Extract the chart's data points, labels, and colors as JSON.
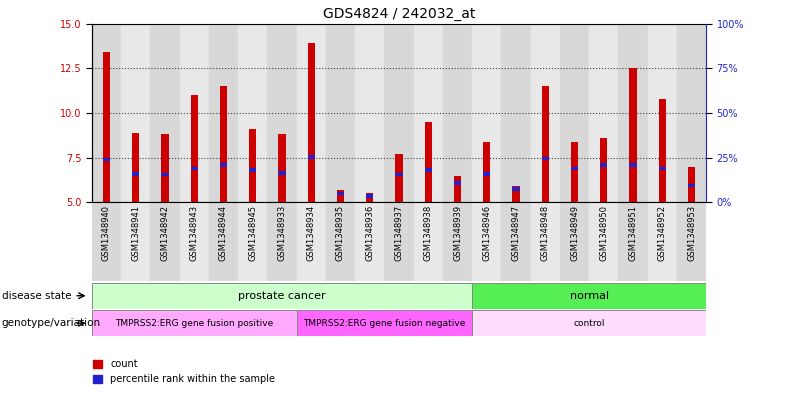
{
  "title": "GDS4824 / 242032_at",
  "samples": [
    "GSM1348940",
    "GSM1348941",
    "GSM1348942",
    "GSM1348943",
    "GSM1348944",
    "GSM1348945",
    "GSM1348933",
    "GSM1348934",
    "GSM1348935",
    "GSM1348936",
    "GSM1348937",
    "GSM1348938",
    "GSM1348939",
    "GSM1348946",
    "GSM1348947",
    "GSM1348948",
    "GSM1348949",
    "GSM1348950",
    "GSM1348951",
    "GSM1348952",
    "GSM1348953"
  ],
  "count_values": [
    13.4,
    8.9,
    8.85,
    11.0,
    11.5,
    9.1,
    8.85,
    13.9,
    5.7,
    5.5,
    7.7,
    9.5,
    6.5,
    8.4,
    5.9,
    11.5,
    8.4,
    8.6,
    12.5,
    10.8,
    7.0
  ],
  "percentile_values": [
    7.4,
    6.6,
    6.55,
    6.9,
    7.1,
    6.8,
    6.65,
    7.55,
    5.5,
    5.35,
    6.55,
    6.8,
    6.1,
    6.6,
    5.75,
    7.45,
    6.9,
    7.1,
    7.1,
    6.9,
    5.95
  ],
  "ylim_left": [
    5,
    15
  ],
  "ylim_right": [
    0,
    100
  ],
  "y_left_ticks": [
    5,
    7.5,
    10,
    12.5,
    15
  ],
  "y_right_ticks": [
    0,
    25,
    50,
    75,
    100
  ],
  "bar_color": "#cc0000",
  "blue_color": "#2222cc",
  "bar_width": 0.25,
  "col_bg_even": "#d8d8d8",
  "col_bg_odd": "#e8e8e8",
  "left_tick_color": "#cc0000",
  "right_tick_color": "#2222cc",
  "grid_linestyle": ":",
  "grid_color": "#444444",
  "grid_linewidth": 0.8,
  "title_fontsize": 10,
  "tick_fontsize": 7,
  "sample_fontsize": 6,
  "ds_prostate_color": "#ccffcc",
  "ds_normal_color": "#55ee55",
  "gv_positive_color": "#ffaaff",
  "gv_negative_color": "#ff66ff",
  "gv_control_color": "#ffddff",
  "annotation_border_color": "#888888",
  "legend_fontsize": 7,
  "row_label_fontsize": 7.5,
  "ds_label_fontsize": 8,
  "gv_label_fontsize": 6.5
}
